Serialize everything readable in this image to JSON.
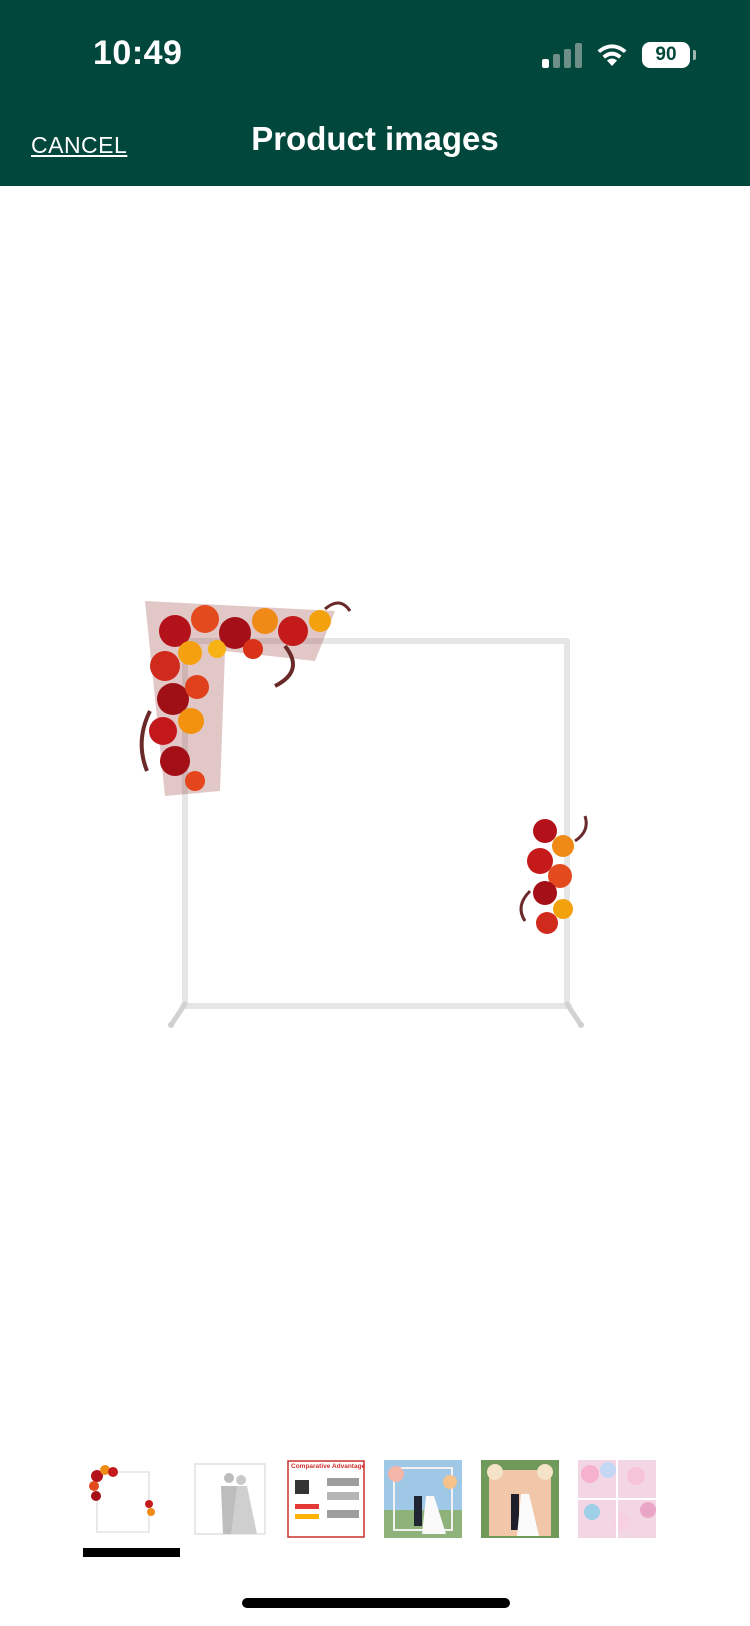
{
  "status_bar": {
    "time": "10:49",
    "battery_level": "90",
    "signal_bars_active": 1,
    "icons": [
      "cellular-signal-icon",
      "wifi-icon",
      "battery-icon"
    ]
  },
  "header": {
    "cancel_label": "CANCEL",
    "title": "Product images",
    "background_color": "#02473c"
  },
  "main_image": {
    "description_icon": "floral-backdrop-arch-image"
  },
  "thumbnails": {
    "selected_index": 0,
    "items": [
      {
        "name": "floral-arch-thumbnail",
        "label": ""
      },
      {
        "name": "couple-dimensions-thumbnail",
        "label": ""
      },
      {
        "name": "comparative-advantage-thumbnail",
        "label": "Comparative Advantage"
      },
      {
        "name": "wedding-arch-outdoor-thumbnail",
        "label": ""
      },
      {
        "name": "pink-drapes-wedding-thumbnail",
        "label": ""
      },
      {
        "name": "balloon-collage-thumbnail",
        "label": ""
      }
    ]
  }
}
